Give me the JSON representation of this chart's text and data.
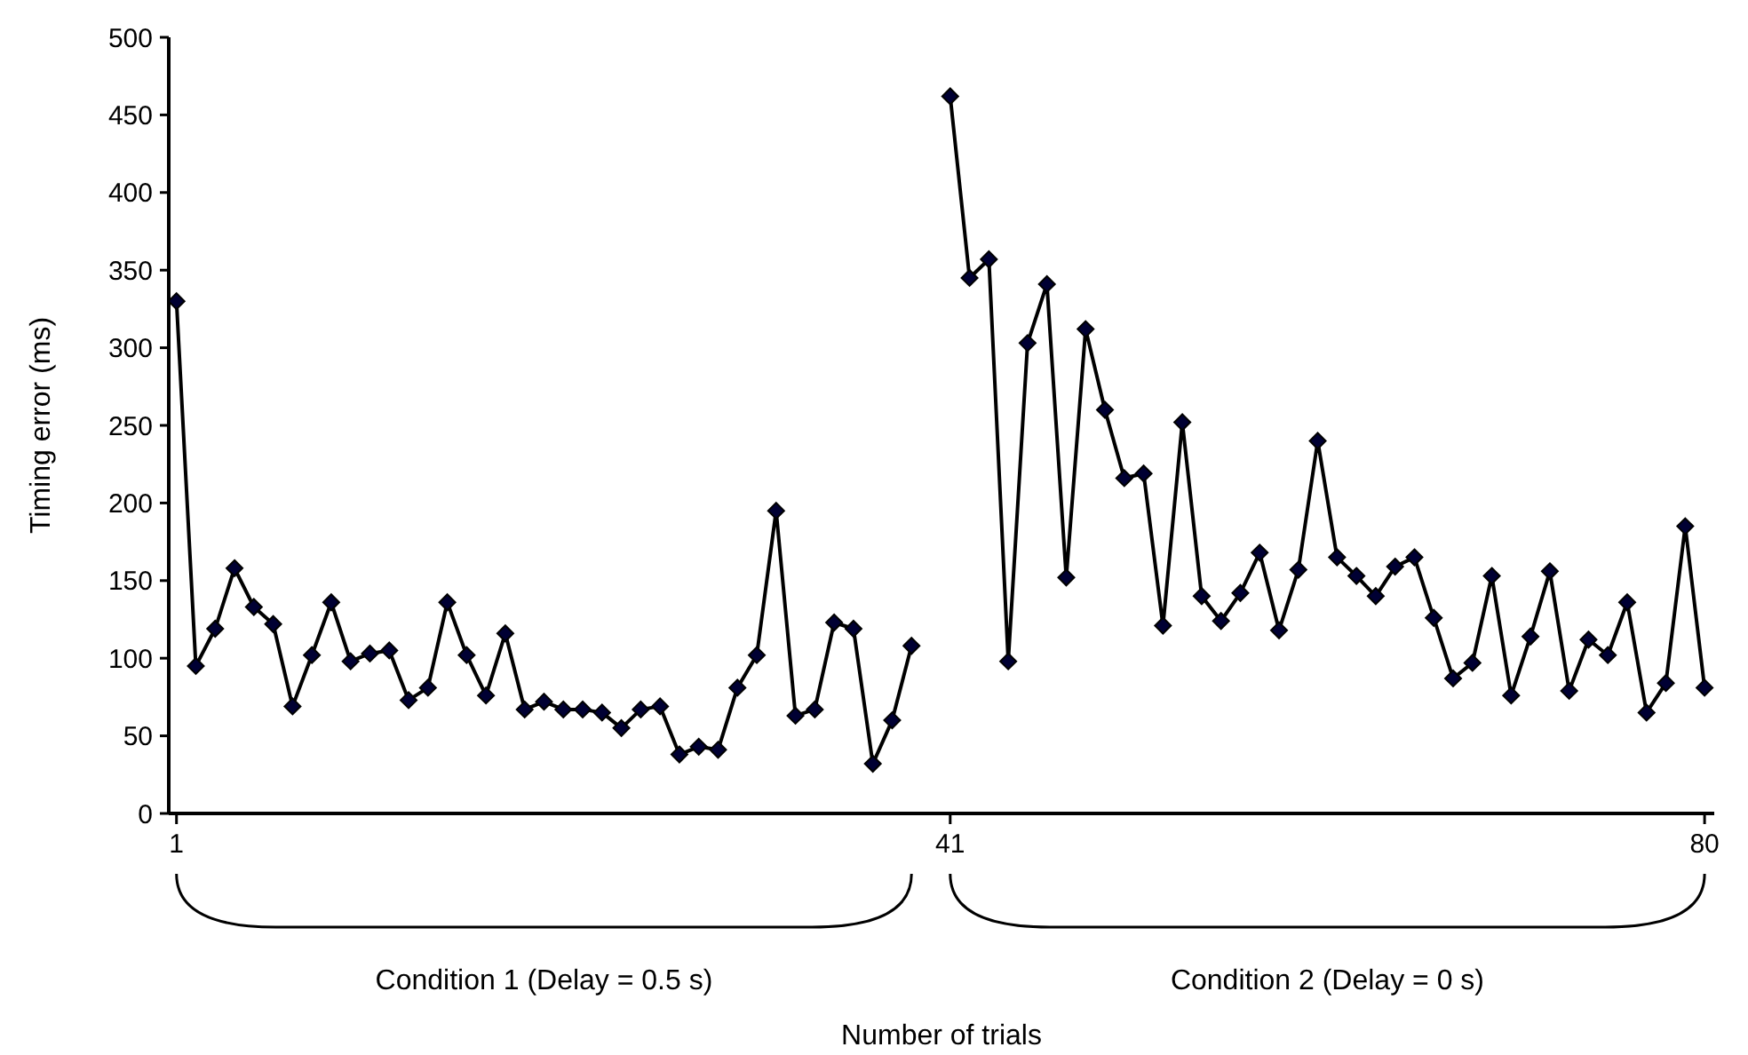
{
  "chart_data": {
    "type": "line",
    "ylabel": "Timing error (ms)",
    "x": [
      1,
      2,
      3,
      4,
      5,
      6,
      7,
      8,
      9,
      10,
      11,
      12,
      13,
      14,
      15,
      16,
      17,
      18,
      19,
      20,
      21,
      22,
      23,
      24,
      25,
      26,
      27,
      28,
      29,
      30,
      31,
      32,
      33,
      34,
      35,
      36,
      37,
      38,
      39,
      40,
      41,
      42,
      43,
      44,
      45,
      46,
      47,
      48,
      49,
      50,
      51,
      52,
      53,
      54,
      55,
      56,
      57,
      58,
      59,
      60,
      61,
      62,
      63,
      64,
      65,
      66,
      67,
      68,
      69,
      70,
      71,
      72,
      73,
      74,
      75,
      76,
      77,
      78,
      79,
      80
    ],
    "series": [
      {
        "color": "#000033",
        "values": [
          330,
          95,
          119,
          158,
          133,
          122,
          69,
          102,
          136,
          98,
          103,
          105,
          73,
          81,
          136,
          102,
          76,
          116,
          67,
          72,
          67,
          67,
          65,
          55,
          67,
          69,
          38,
          43,
          41,
          81,
          102,
          195,
          63,
          67,
          123,
          119,
          32,
          60,
          108,
          null,
          462,
          345,
          357,
          98,
          303,
          341,
          152,
          312,
          260,
          216,
          219,
          121,
          252,
          140,
          124,
          142,
          168,
          118,
          157,
          240,
          165,
          153,
          140,
          159,
          165,
          126,
          87,
          97,
          153,
          76,
          114,
          156,
          79,
          112,
          102,
          136,
          65,
          84,
          185,
          81
        ]
      }
    ],
    "xlim": [
      0.6,
      80.5
    ],
    "xticks": [
      1,
      41,
      80
    ],
    "ylim": [
      0,
      500
    ],
    "yticks": [
      0,
      50,
      100,
      150,
      200,
      250,
      300,
      350,
      400,
      450,
      500
    ],
    "grid": false,
    "marker": "diamond",
    "line_style": "solid",
    "annotations": [
      "Condition 1 (Delay = 0.5 s)",
      "Condition 2 (Delay = 0 s)",
      "Number of trials"
    ]
  }
}
